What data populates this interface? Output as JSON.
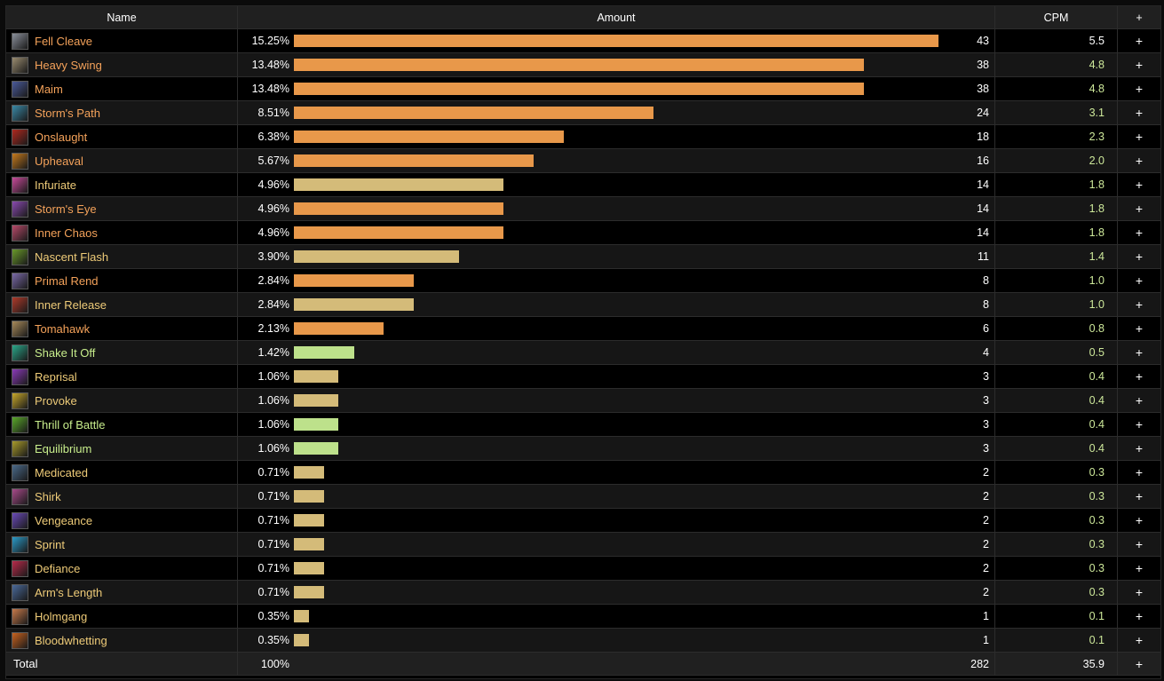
{
  "table": {
    "headers": {
      "name": "Name",
      "amount": "Amount",
      "cpm": "CPM",
      "expand": "+"
    },
    "colors": {
      "orange": "#e8984a",
      "tan": "#d4bb79",
      "green": "#bde18b",
      "name_orange": "#f4a25a",
      "name_tan": "#eecb78",
      "name_green": "#c8ee8c",
      "cpm_green": "#cde89a"
    },
    "rows": [
      {
        "name": "Fell Cleave",
        "pct": "15.25%",
        "pct_value": 15.25,
        "count": "43",
        "cpm": "5.5",
        "bar_color": "orange",
        "icon": "fell-cleave-icon",
        "icon_color": "#8a8f9a"
      },
      {
        "name": "Heavy Swing",
        "pct": "13.48%",
        "pct_value": 13.48,
        "count": "38",
        "cpm": "4.8",
        "bar_color": "orange",
        "icon": "heavy-swing-icon",
        "icon_color": "#9a8c70"
      },
      {
        "name": "Maim",
        "pct": "13.48%",
        "pct_value": 13.48,
        "count": "38",
        "cpm": "4.8",
        "bar_color": "orange",
        "icon": "maim-icon",
        "icon_color": "#4a5a9a"
      },
      {
        "name": "Storm's Path",
        "pct": "8.51%",
        "pct_value": 8.51,
        "count": "24",
        "cpm": "3.1",
        "bar_color": "orange",
        "icon": "storms-path-icon",
        "icon_color": "#3a8aa8"
      },
      {
        "name": "Onslaught",
        "pct": "6.38%",
        "pct_value": 6.38,
        "count": "18",
        "cpm": "2.3",
        "bar_color": "orange",
        "icon": "onslaught-icon",
        "icon_color": "#b0281e"
      },
      {
        "name": "Upheaval",
        "pct": "5.67%",
        "pct_value": 5.67,
        "count": "16",
        "cpm": "2.0",
        "bar_color": "orange",
        "icon": "upheaval-icon",
        "icon_color": "#c67a1c"
      },
      {
        "name": "Infuriate",
        "pct": "4.96%",
        "pct_value": 4.96,
        "count": "14",
        "cpm": "1.8",
        "bar_color": "tan",
        "icon": "infuriate-icon",
        "icon_color": "#c84a9a"
      },
      {
        "name": "Storm's Eye",
        "pct": "4.96%",
        "pct_value": 4.96,
        "count": "14",
        "cpm": "1.8",
        "bar_color": "orange",
        "icon": "storms-eye-icon",
        "icon_color": "#8a4ab0"
      },
      {
        "name": "Inner Chaos",
        "pct": "4.96%",
        "pct_value": 4.96,
        "count": "14",
        "cpm": "1.8",
        "bar_color": "orange",
        "icon": "inner-chaos-icon",
        "icon_color": "#b84a6a"
      },
      {
        "name": "Nascent Flash",
        "pct": "3.90%",
        "pct_value": 3.9,
        "count": "11",
        "cpm": "1.4",
        "bar_color": "tan",
        "icon": "nascent-flash-icon",
        "icon_color": "#6a9a2a"
      },
      {
        "name": "Primal Rend",
        "pct": "2.84%",
        "pct_value": 2.84,
        "count": "8",
        "cpm": "1.0",
        "bar_color": "orange",
        "icon": "primal-rend-icon",
        "icon_color": "#7a6aa8"
      },
      {
        "name": "Inner Release",
        "pct": "2.84%",
        "pct_value": 2.84,
        "count": "8",
        "cpm": "1.0",
        "bar_color": "tan",
        "icon": "inner-release-icon",
        "icon_color": "#b03a2a"
      },
      {
        "name": "Tomahawk",
        "pct": "2.13%",
        "pct_value": 2.13,
        "count": "6",
        "cpm": "0.8",
        "bar_color": "orange",
        "icon": "tomahawk-icon",
        "icon_color": "#a88a5a"
      },
      {
        "name": "Shake It Off",
        "pct": "1.42%",
        "pct_value": 1.42,
        "count": "4",
        "cpm": "0.5",
        "bar_color": "green",
        "icon": "shake-it-off-icon",
        "icon_color": "#2aa88a"
      },
      {
        "name": "Reprisal",
        "pct": "1.06%",
        "pct_value": 1.06,
        "count": "3",
        "cpm": "0.4",
        "bar_color": "tan",
        "icon": "reprisal-icon",
        "icon_color": "#8a3ab8"
      },
      {
        "name": "Provoke",
        "pct": "1.06%",
        "pct_value": 1.06,
        "count": "3",
        "cpm": "0.4",
        "bar_color": "tan",
        "icon": "provoke-icon",
        "icon_color": "#c8a82a"
      },
      {
        "name": "Thrill of Battle",
        "pct": "1.06%",
        "pct_value": 1.06,
        "count": "3",
        "cpm": "0.4",
        "bar_color": "green",
        "icon": "thrill-of-battle-icon",
        "icon_color": "#5aa82a"
      },
      {
        "name": "Equilibrium",
        "pct": "1.06%",
        "pct_value": 1.06,
        "count": "3",
        "cpm": "0.4",
        "bar_color": "green",
        "icon": "equilibrium-icon",
        "icon_color": "#a89a2a"
      },
      {
        "name": "Medicated",
        "pct": "0.71%",
        "pct_value": 0.71,
        "count": "2",
        "cpm": "0.3",
        "bar_color": "tan",
        "icon": "medicated-icon",
        "icon_color": "#4a6a8a"
      },
      {
        "name": "Shirk",
        "pct": "0.71%",
        "pct_value": 0.71,
        "count": "2",
        "cpm": "0.3",
        "bar_color": "tan",
        "icon": "shirk-icon",
        "icon_color": "#a84a8a"
      },
      {
        "name": "Vengeance",
        "pct": "0.71%",
        "pct_value": 0.71,
        "count": "2",
        "cpm": "0.3",
        "bar_color": "tan",
        "icon": "vengeance-icon",
        "icon_color": "#6a4ab8"
      },
      {
        "name": "Sprint",
        "pct": "0.71%",
        "pct_value": 0.71,
        "count": "2",
        "cpm": "0.3",
        "bar_color": "tan",
        "icon": "sprint-icon",
        "icon_color": "#2a9ac8"
      },
      {
        "name": "Defiance",
        "pct": "0.71%",
        "pct_value": 0.71,
        "count": "2",
        "cpm": "0.3",
        "bar_color": "tan",
        "icon": "defiance-icon",
        "icon_color": "#b82a4a"
      },
      {
        "name": "Arm's Length",
        "pct": "0.71%",
        "pct_value": 0.71,
        "count": "2",
        "cpm": "0.3",
        "bar_color": "tan",
        "icon": "arms-length-icon",
        "icon_color": "#4a6a9a"
      },
      {
        "name": "Holmgang",
        "pct": "0.35%",
        "pct_value": 0.35,
        "count": "1",
        "cpm": "0.1",
        "bar_color": "tan",
        "icon": "holmgang-icon",
        "icon_color": "#c87a4a"
      },
      {
        "name": "Bloodwhetting",
        "pct": "0.35%",
        "pct_value": 0.35,
        "count": "1",
        "cpm": "0.1",
        "bar_color": "tan",
        "icon": "bloodwhetting-icon",
        "icon_color": "#c8621e"
      }
    ],
    "total": {
      "label": "Total",
      "pct": "100%",
      "count": "282",
      "cpm": "35.9",
      "expand": "+"
    }
  }
}
